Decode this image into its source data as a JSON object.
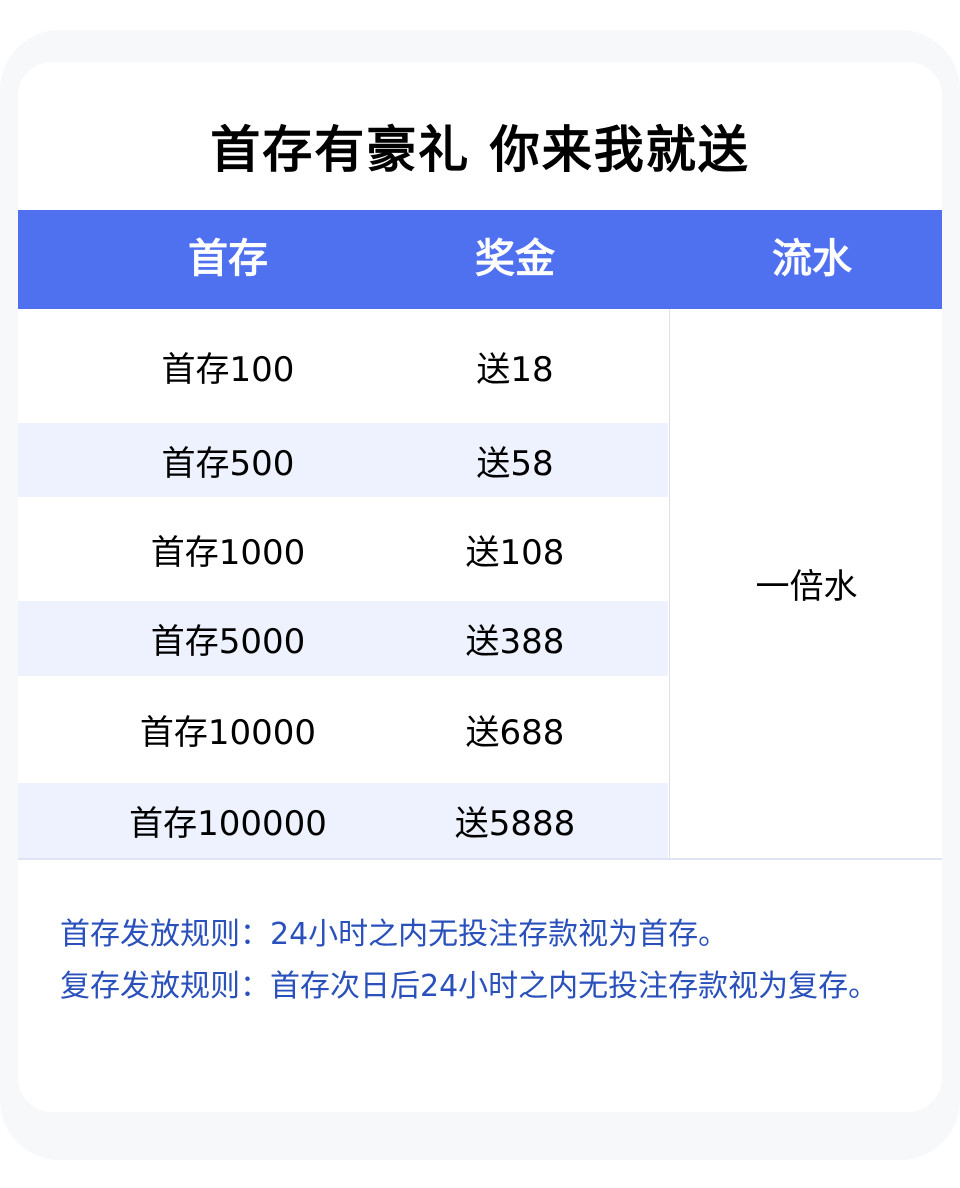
{
  "title": "首存有豪礼 你来我就送",
  "table": {
    "headers": [
      "首存",
      "奖金",
      "流水"
    ],
    "rows": [
      {
        "deposit": "首存100",
        "bonus": "送18"
      },
      {
        "deposit": "首存500",
        "bonus": "送58"
      },
      {
        "deposit": "首存1000",
        "bonus": "送108"
      },
      {
        "deposit": "首存5000",
        "bonus": "送388"
      },
      {
        "deposit": "首存10000",
        "bonus": "送688"
      },
      {
        "deposit": "首存100000",
        "bonus": "送5888"
      }
    ],
    "wagering": "一倍水"
  },
  "rules": [
    "首存发放规则：24小时之内无投注存款视为首存。",
    "复存发放规则：首存次日后24小时之内无投注存款视为复存。"
  ],
  "colors": {
    "header_bg": "#4f71f0",
    "alt_row_bg": "#eef2fe",
    "rules_text": "#2a50bb"
  }
}
